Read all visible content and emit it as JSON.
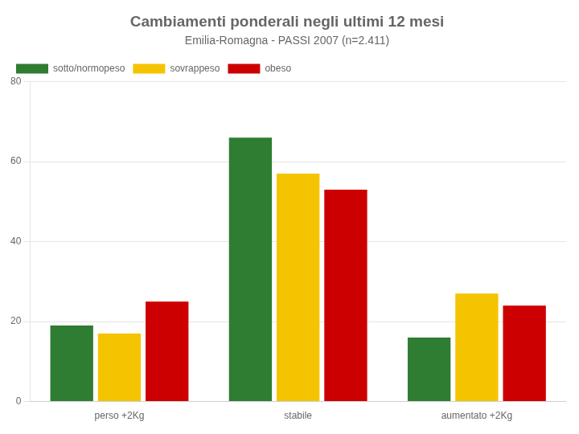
{
  "chart_data": {
    "type": "bar",
    "title": "Cambiamenti ponderali negli ultimi 12 mesi",
    "subtitle": "Emilia-Romagna - PASSI 2007 (n=2.411)",
    "categories": [
      "perso +2Kg",
      "stabile",
      "aumentato +2Kg"
    ],
    "series": [
      {
        "name": "sotto/normopeso",
        "color": "#2e7d32",
        "values": [
          19,
          66,
          16
        ]
      },
      {
        "name": "sovrappeso",
        "color": "#f5c400",
        "values": [
          17,
          57,
          27
        ]
      },
      {
        "name": "obeso",
        "color": "#cc0000",
        "values": [
          25,
          53,
          24
        ]
      }
    ],
    "ylim": [
      0,
      80
    ],
    "yticks": [
      0,
      20,
      40,
      60,
      80
    ],
    "grid": true,
    "legend": "upper left"
  }
}
